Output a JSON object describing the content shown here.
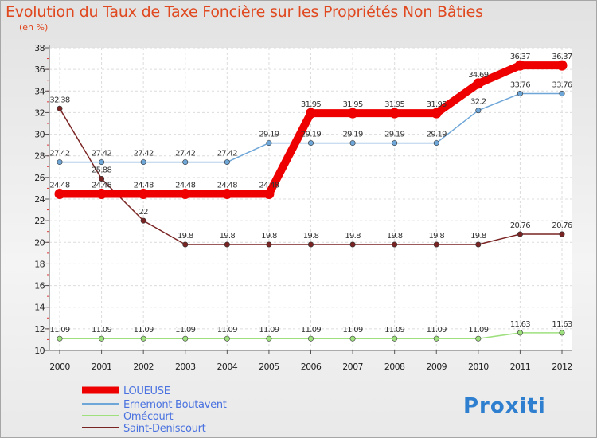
{
  "header": {
    "title": "Evolution du Taux de Taxe Foncière sur les Propriétés Non Bâties",
    "subtitle": "(en %)"
  },
  "brand": {
    "logo_text": "Proxiti"
  },
  "chart_data": {
    "type": "line",
    "title": "Evolution du Taux de Taxe Foncière sur les Propriétés Non Bâties",
    "ylabel": "(en %)",
    "xlabel": "",
    "ylim": [
      10,
      38
    ],
    "yticks": [
      10,
      12,
      14,
      16,
      18,
      20,
      22,
      24,
      26,
      28,
      30,
      32,
      34,
      36,
      38
    ],
    "categories": [
      "2000",
      "2001",
      "2002",
      "2003",
      "2004",
      "2005",
      "2006",
      "2007",
      "2008",
      "2009",
      "2010",
      "2011",
      "2012"
    ],
    "grid": true,
    "legend_position": "bottom-left",
    "series": [
      {
        "name": "LOUEUSE",
        "color": "#ee0000",
        "line_width": 10,
        "values": [
          24.48,
          24.48,
          24.48,
          24.48,
          24.48,
          24.48,
          31.95,
          31.95,
          31.95,
          31.95,
          34.69,
          36.37,
          36.37
        ],
        "labels": [
          "24.48",
          "24.48",
          "24.48",
          "24.48",
          "24.48",
          "24.48",
          "31.95",
          "31.95",
          "31.95",
          "31.95",
          "34.69",
          "36.37",
          "36.37"
        ]
      },
      {
        "name": "Ernemont-Boutavent",
        "color": "#6ea6d8",
        "line_width": 1.5,
        "values": [
          27.42,
          27.42,
          27.42,
          27.42,
          27.42,
          29.19,
          29.19,
          29.19,
          29.19,
          29.19,
          32.2,
          33.76,
          33.76
        ],
        "labels": [
          "27.42",
          "27.42",
          "27.42",
          "27.42",
          "27.42",
          "29.19",
          "29.19",
          "29.19",
          "29.19",
          "29.19",
          "32.2",
          "33.76",
          "33.76"
        ]
      },
      {
        "name": "Omécourt",
        "color": "#9ee07e",
        "line_width": 1.5,
        "values": [
          11.09,
          11.09,
          11.09,
          11.09,
          11.09,
          11.09,
          11.09,
          11.09,
          11.09,
          11.09,
          11.09,
          11.63,
          11.63
        ],
        "labels": [
          "11.09",
          "11.09",
          "11.09",
          "11.09",
          "11.09",
          "11.09",
          "11.09",
          "11.09",
          "11.09",
          "11.09",
          "11.09",
          "11.63",
          "11.63"
        ]
      },
      {
        "name": "Saint-Deniscourt",
        "color": "#7a2323",
        "line_width": 1.5,
        "values": [
          32.38,
          25.88,
          22,
          19.8,
          19.8,
          19.8,
          19.8,
          19.8,
          19.8,
          19.8,
          19.8,
          20.76,
          20.76
        ],
        "labels": [
          "32.38",
          "25.88",
          "22",
          "19.8",
          "19.8",
          "19.8",
          "19.8",
          "19.8",
          "19.8",
          "19.8",
          "19.8",
          "20.76",
          "20.76"
        ]
      }
    ]
  }
}
